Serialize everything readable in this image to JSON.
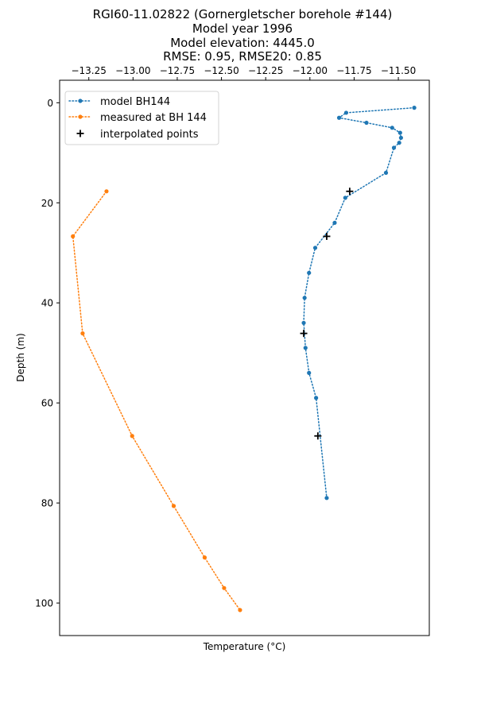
{
  "chart_data": {
    "type": "line",
    "title_lines": [
      "RGI60-11.02822 (Gornergletscher borehole #144)",
      "Model year 1996",
      "Model elevation: 4445.0",
      "RMSE: 0.95, RMSE20: 0.85"
    ],
    "xlabel": "Temperature (°C)",
    "ylabel": "Depth (m)",
    "xlim": [
      -13.415,
      -11.325
    ],
    "ylim": [
      106.5,
      -4.5
    ],
    "x_axis_position": "top",
    "y_inverted": true,
    "grid": false,
    "xticks": [
      -13.25,
      -13.0,
      -12.75,
      -12.5,
      -12.25,
      -12.0,
      -11.75,
      -11.5
    ],
    "xtick_labels": [
      "−13.25",
      "−13.00",
      "−12.75",
      "−12.50",
      "−12.25",
      "−12.00",
      "−11.75",
      "−11.50"
    ],
    "yticks": [
      0,
      20,
      40,
      60,
      80,
      100
    ],
    "ytick_labels": [
      "0",
      "20",
      "40",
      "60",
      "80",
      "100"
    ],
    "legend_position": "top-left",
    "series": [
      {
        "name": "model BH144",
        "color": "#1f77b4",
        "style": "dotted-line-with-dots",
        "points": [
          {
            "x": -11.41,
            "y": 1
          },
          {
            "x": -11.795,
            "y": 2
          },
          {
            "x": -11.835,
            "y": 3
          },
          {
            "x": -11.68,
            "y": 4
          },
          {
            "x": -11.535,
            "y": 5
          },
          {
            "x": -11.49,
            "y": 6
          },
          {
            "x": -11.485,
            "y": 7
          },
          {
            "x": -11.495,
            "y": 8
          },
          {
            "x": -11.525,
            "y": 9
          },
          {
            "x": -11.57,
            "y": 14
          },
          {
            "x": -11.8,
            "y": 19
          },
          {
            "x": -11.86,
            "y": 24
          },
          {
            "x": -11.97,
            "y": 29
          },
          {
            "x": -12.005,
            "y": 34
          },
          {
            "x": -12.03,
            "y": 39
          },
          {
            "x": -12.035,
            "y": 44
          },
          {
            "x": -12.025,
            "y": 49
          },
          {
            "x": -12.005,
            "y": 54
          },
          {
            "x": -11.965,
            "y": 59
          },
          {
            "x": -11.905,
            "y": 79
          }
        ]
      },
      {
        "name": "measured at BH 144",
        "color": "#ff7f0e",
        "style": "dotted-line-with-dots",
        "points": [
          {
            "x": -13.15,
            "y": 17.7
          },
          {
            "x": -13.34,
            "y": 26.7
          },
          {
            "x": -13.285,
            "y": 46.1
          },
          {
            "x": -13.005,
            "y": 66.6
          },
          {
            "x": -12.77,
            "y": 80.6
          },
          {
            "x": -12.595,
            "y": 90.9
          },
          {
            "x": -12.485,
            "y": 97
          },
          {
            "x": -12.395,
            "y": 101.4
          }
        ]
      },
      {
        "name": "interpolated points",
        "color": "#000000",
        "style": "plus-markers",
        "points": [
          {
            "x": -11.775,
            "y": 17.7
          },
          {
            "x": -11.905,
            "y": 26.7
          },
          {
            "x": -12.035,
            "y": 46.1
          },
          {
            "x": -11.955,
            "y": 66.6
          }
        ]
      }
    ]
  }
}
